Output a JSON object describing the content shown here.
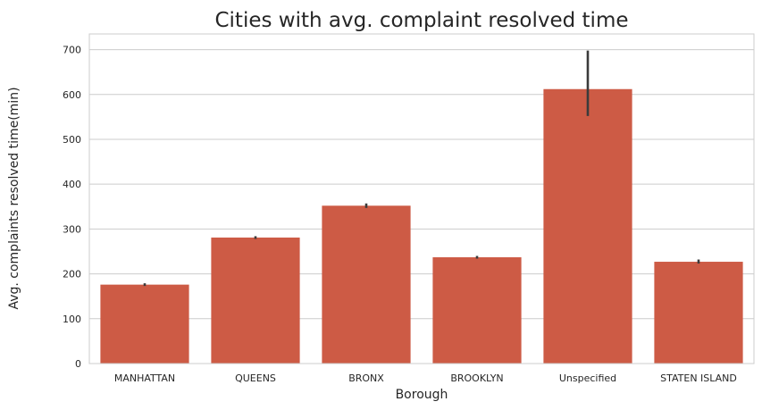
{
  "chart_data": {
    "type": "bar",
    "title": "Cities with avg. complaint resolved time",
    "xlabel": "Borough",
    "ylabel": "Avg. complaints resolved time(min)",
    "categories": [
      "MANHATTAN",
      "QUEENS",
      "BRONX",
      "BROOKLYN",
      "Unspecified",
      "STATEN ISLAND"
    ],
    "values": [
      176,
      281,
      352,
      237,
      612,
      227
    ],
    "error_low": [
      173,
      278,
      347,
      234,
      552,
      223
    ],
    "error_high": [
      179,
      284,
      357,
      240,
      698,
      232
    ],
    "ylim": [
      0,
      735
    ],
    "yticks": [
      0,
      100,
      200,
      300,
      400,
      500,
      600,
      700
    ],
    "grid": true,
    "colors": {
      "bar": "#cd5b45",
      "grid": "#cccccc",
      "error_bar": "#3b3b3b",
      "axis": "#cccccc"
    }
  }
}
